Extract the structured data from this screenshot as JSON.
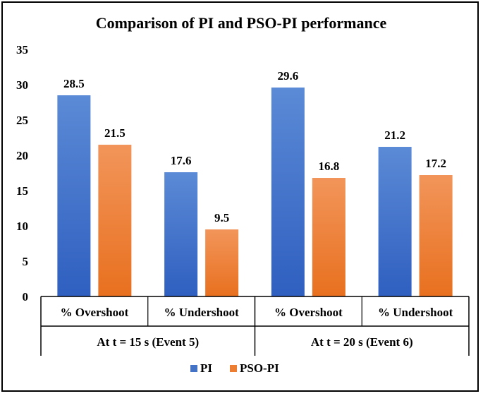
{
  "chart_data": {
    "type": "bar",
    "title": "Comparison of PI and PSO-PI performance",
    "categories": [
      "% Overshoot",
      "% Undershoot",
      "% Overshoot",
      "% Undershoot"
    ],
    "groups": [
      {
        "label": "At t = 15 s (Event 5)",
        "categories": [
          0,
          1
        ]
      },
      {
        "label": "At t = 20 s (Event 6)",
        "categories": [
          2,
          3
        ]
      }
    ],
    "series": [
      {
        "name": "PI",
        "values": [
          28.5,
          17.6,
          29.6,
          21.2
        ],
        "color": "#4472C4"
      },
      {
        "name": "PSO-PI",
        "values": [
          21.5,
          9.5,
          16.8,
          17.2
        ],
        "color": "#ED7D31"
      }
    ],
    "yticks": [
      "0",
      "5",
      "10",
      "15",
      "20",
      "25",
      "30",
      "35"
    ],
    "ylim": [
      0,
      35
    ],
    "xlabel": "",
    "ylabel": "",
    "legend": "bottom"
  }
}
